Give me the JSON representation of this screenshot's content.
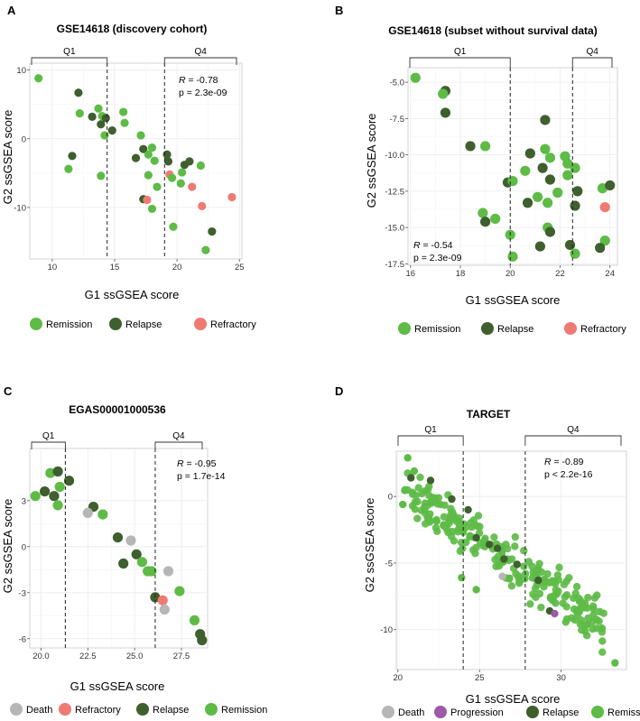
{
  "colors": {
    "Remission": "#5dbb46",
    "Relapse": "#3f5f2e",
    "Refractory": "#ef7a72",
    "Death": "#b6b6b6",
    "Progression": "#9c59a8"
  },
  "chart_data": [
    {
      "type": "scatter",
      "panel": "A",
      "title": "GSE14618 (discovery cohort)",
      "xlabel": "G1 ssGSEA score",
      "ylabel": "G2 ssGSEA score",
      "xlim": [
        8.2,
        25.2
      ],
      "ylim": [
        -17.5,
        11
      ],
      "xticks": [
        10,
        15,
        20,
        25
      ],
      "yticks": [
        10,
        0,
        -10
      ],
      "q1_label": "Q1",
      "q4_label": "Q4",
      "q1_cut": 14.4,
      "q4_cut": 19.0,
      "stats": {
        "r": "= -0.78",
        "p": "p = 2.3e-09",
        "r_label": "R",
        "r_italic": true
      },
      "legend": [
        "Remission",
        "Relapse",
        "Refractory"
      ],
      "points": [
        {
          "x": 8.9,
          "y": 8.8,
          "g": "Remission"
        },
        {
          "x": 12.1,
          "y": 6.7,
          "g": "Relapse"
        },
        {
          "x": 13.7,
          "y": 4.4,
          "g": "Remission"
        },
        {
          "x": 15.7,
          "y": 3.9,
          "g": "Remission"
        },
        {
          "x": 12.2,
          "y": 3.7,
          "g": "Remission"
        },
        {
          "x": 13.2,
          "y": 3.2,
          "g": "Relapse"
        },
        {
          "x": 14.0,
          "y": 3.3,
          "g": "Remission"
        },
        {
          "x": 14.3,
          "y": 3.0,
          "g": "Relapse"
        },
        {
          "x": 13.9,
          "y": 2.1,
          "g": "Relapse"
        },
        {
          "x": 15.8,
          "y": 2.3,
          "g": "Remission"
        },
        {
          "x": 14.8,
          "y": 1.2,
          "g": "Relapse"
        },
        {
          "x": 14.2,
          "y": 0.5,
          "g": "Remission"
        },
        {
          "x": 17.1,
          "y": 0.5,
          "g": "Remission"
        },
        {
          "x": 11.6,
          "y": -2.5,
          "g": "Relapse"
        },
        {
          "x": 17.3,
          "y": -1.5,
          "g": "Relapse"
        },
        {
          "x": 18.0,
          "y": -1.3,
          "g": "Remission"
        },
        {
          "x": 17.7,
          "y": -2.3,
          "g": "Remission"
        },
        {
          "x": 16.7,
          "y": -2.8,
          "g": "Relapse"
        },
        {
          "x": 18.2,
          "y": -3.2,
          "g": "Remission"
        },
        {
          "x": 19.2,
          "y": -2.3,
          "g": "Relapse"
        },
        {
          "x": 19.3,
          "y": -3.3,
          "g": "Relapse"
        },
        {
          "x": 20.6,
          "y": -3.8,
          "g": "Relapse"
        },
        {
          "x": 21.0,
          "y": -3.3,
          "g": "Relapse"
        },
        {
          "x": 21.9,
          "y": -3.9,
          "g": "Remission"
        },
        {
          "x": 11.3,
          "y": -4.4,
          "g": "Remission"
        },
        {
          "x": 13.9,
          "y": -5.4,
          "g": "Remission"
        },
        {
          "x": 17.7,
          "y": -5.3,
          "g": "Remission"
        },
        {
          "x": 20.4,
          "y": -4.9,
          "g": "Remission"
        },
        {
          "x": 19.4,
          "y": -5.2,
          "g": "Refractory"
        },
        {
          "x": 19.6,
          "y": -5.7,
          "g": "Remission"
        },
        {
          "x": 18.4,
          "y": -7.0,
          "g": "Remission"
        },
        {
          "x": 20.3,
          "y": -6.5,
          "g": "Remission"
        },
        {
          "x": 21.2,
          "y": -7.0,
          "g": "Refractory"
        },
        {
          "x": 17.3,
          "y": -8.8,
          "g": "Relapse"
        },
        {
          "x": 17.6,
          "y": -8.9,
          "g": "Refractory"
        },
        {
          "x": 18.0,
          "y": -10.2,
          "g": "Remission"
        },
        {
          "x": 19.7,
          "y": -12.8,
          "g": "Remission"
        },
        {
          "x": 22.0,
          "y": -9.8,
          "g": "Refractory"
        },
        {
          "x": 24.4,
          "y": -8.5,
          "g": "Refractory"
        },
        {
          "x": 22.8,
          "y": -13.5,
          "g": "Relapse"
        },
        {
          "x": 22.3,
          "y": -16.2,
          "g": "Remission"
        }
      ]
    },
    {
      "type": "scatter",
      "panel": "B",
      "title": "GSE14618 (subset without survival data)",
      "xlabel": "G1 ssGSEA score",
      "ylabel": "G2 ssGSEA score",
      "xlim": [
        15.9,
        24.3
      ],
      "ylim": [
        -17.6,
        -4.0
      ],
      "xticks": [
        16,
        18,
        20,
        22,
        24
      ],
      "yticks": [
        -5.0,
        -7.5,
        -10.0,
        -12.5,
        -15.0,
        -17.5
      ],
      "q1_label": "Q1",
      "q4_label": "Q4",
      "q1_cut": 20.0,
      "q4_cut": 22.5,
      "stats": {
        "r": "= -0.54",
        "p": "p = 2.3e-09",
        "r_label": "R",
        "r_italic": true
      },
      "legend": [
        "Remission",
        "Relapse",
        "Refractory"
      ],
      "points": [
        {
          "x": 16.2,
          "y": -4.7,
          "g": "Remission"
        },
        {
          "x": 17.4,
          "y": -5.6,
          "g": "Relapse"
        },
        {
          "x": 17.3,
          "y": -5.8,
          "g": "Remission"
        },
        {
          "x": 17.4,
          "y": -7.1,
          "g": "Relapse"
        },
        {
          "x": 21.4,
          "y": -7.6,
          "g": "Relapse"
        },
        {
          "x": 18.4,
          "y": -9.4,
          "g": "Relapse"
        },
        {
          "x": 19.0,
          "y": -9.4,
          "g": "Remission"
        },
        {
          "x": 21.4,
          "y": -9.6,
          "g": "Remission"
        },
        {
          "x": 20.8,
          "y": -9.9,
          "g": "Relapse"
        },
        {
          "x": 21.6,
          "y": -10.2,
          "g": "Remission"
        },
        {
          "x": 22.2,
          "y": -10.1,
          "g": "Remission"
        },
        {
          "x": 22.3,
          "y": -10.6,
          "g": "Remission"
        },
        {
          "x": 21.3,
          "y": -10.9,
          "g": "Relapse"
        },
        {
          "x": 22.6,
          "y": -10.9,
          "g": "Remission"
        },
        {
          "x": 20.6,
          "y": -11.1,
          "g": "Remission"
        },
        {
          "x": 19.9,
          "y": -11.9,
          "g": "Relapse"
        },
        {
          "x": 20.1,
          "y": -11.8,
          "g": "Remission"
        },
        {
          "x": 21.6,
          "y": -11.7,
          "g": "Relapse"
        },
        {
          "x": 22.3,
          "y": -11.4,
          "g": "Remission"
        },
        {
          "x": 22.7,
          "y": -12.5,
          "g": "Relapse"
        },
        {
          "x": 23.7,
          "y": -12.3,
          "g": "Remission"
        },
        {
          "x": 24.0,
          "y": -12.1,
          "g": "Relapse"
        },
        {
          "x": 21.9,
          "y": -12.6,
          "g": "Remission"
        },
        {
          "x": 21.1,
          "y": -12.9,
          "g": "Remission"
        },
        {
          "x": 21.5,
          "y": -13.3,
          "g": "Remission"
        },
        {
          "x": 20.7,
          "y": -13.3,
          "g": "Relapse"
        },
        {
          "x": 22.6,
          "y": -13.5,
          "g": "Relapse"
        },
        {
          "x": 23.8,
          "y": -13.6,
          "g": "Refractory"
        },
        {
          "x": 18.9,
          "y": -14.0,
          "g": "Remission"
        },
        {
          "x": 19.4,
          "y": -14.4,
          "g": "Remission"
        },
        {
          "x": 19.0,
          "y": -14.6,
          "g": "Relapse"
        },
        {
          "x": 21.5,
          "y": -15.0,
          "g": "Remission"
        },
        {
          "x": 21.6,
          "y": -15.3,
          "g": "Relapse"
        },
        {
          "x": 20.0,
          "y": -15.5,
          "g": "Remission"
        },
        {
          "x": 23.8,
          "y": -15.9,
          "g": "Remission"
        },
        {
          "x": 21.2,
          "y": -16.3,
          "g": "Relapse"
        },
        {
          "x": 22.4,
          "y": -16.2,
          "g": "Relapse"
        },
        {
          "x": 23.6,
          "y": -16.4,
          "g": "Relapse"
        },
        {
          "x": 22.6,
          "y": -16.8,
          "g": "Remission"
        },
        {
          "x": 20.1,
          "y": -17.0,
          "g": "Remission"
        }
      ]
    },
    {
      "type": "scatter",
      "panel": "C",
      "title": "EGAS00001000536",
      "xlabel": "G1 ssGSEA score",
      "ylabel": "G2 ssGSEA score",
      "xlim": [
        19.4,
        28.9
      ],
      "ylim": [
        -6.6,
        6.4
      ],
      "xticks": [
        20.0,
        22.5,
        25.0,
        27.5
      ],
      "yticks": [
        3,
        0,
        -3,
        -6
      ],
      "xtick_labels": [
        "20.0",
        "22.5",
        "25.0",
        "27.5"
      ],
      "q1_label": "Q1",
      "q4_label": "Q4",
      "q1_cut": 21.3,
      "q4_cut": 26.1,
      "stats": {
        "r": "= -0.95",
        "p": "p = 1.7e-14",
        "r_label": "R",
        "r_italic": true
      },
      "legend": [
        "Death",
        "Refractory",
        "Relapse",
        "Remission"
      ],
      "points": [
        {
          "x": 20.5,
          "y": 4.8,
          "g": "Remission"
        },
        {
          "x": 20.9,
          "y": 4.9,
          "g": "Relapse"
        },
        {
          "x": 21.5,
          "y": 4.3,
          "g": "Relapse"
        },
        {
          "x": 21.0,
          "y": 3.9,
          "g": "Remission"
        },
        {
          "x": 20.2,
          "y": 3.6,
          "g": "Relapse"
        },
        {
          "x": 19.7,
          "y": 3.3,
          "g": "Remission"
        },
        {
          "x": 20.7,
          "y": 3.3,
          "g": "Relapse"
        },
        {
          "x": 20.9,
          "y": 2.7,
          "g": "Remission"
        },
        {
          "x": 22.8,
          "y": 2.6,
          "g": "Relapse"
        },
        {
          "x": 22.5,
          "y": 2.2,
          "g": "Death"
        },
        {
          "x": 23.3,
          "y": 2.1,
          "g": "Remission"
        },
        {
          "x": 24.1,
          "y": 0.6,
          "g": "Relapse"
        },
        {
          "x": 24.8,
          "y": 0.4,
          "g": "Death"
        },
        {
          "x": 25.1,
          "y": -0.5,
          "g": "Relapse"
        },
        {
          "x": 24.4,
          "y": -1.1,
          "g": "Relapse"
        },
        {
          "x": 25.4,
          "y": -1.0,
          "g": "Remission"
        },
        {
          "x": 25.7,
          "y": -1.6,
          "g": "Remission"
        },
        {
          "x": 25.9,
          "y": -1.6,
          "g": "Remission"
        },
        {
          "x": 26.8,
          "y": -1.6,
          "g": "Death"
        },
        {
          "x": 27.4,
          "y": -2.9,
          "g": "Remission"
        },
        {
          "x": 26.1,
          "y": -3.3,
          "g": "Relapse"
        },
        {
          "x": 26.5,
          "y": -3.5,
          "g": "Refractory"
        },
        {
          "x": 26.6,
          "y": -4.1,
          "g": "Death"
        },
        {
          "x": 28.2,
          "y": -4.8,
          "g": "Remission"
        },
        {
          "x": 28.5,
          "y": -5.7,
          "g": "Relapse"
        },
        {
          "x": 28.6,
          "y": -6.1,
          "g": "Relapse"
        }
      ]
    },
    {
      "type": "scatter",
      "panel": "D",
      "title": "TARGET",
      "xlabel": "G1 ssGSEA score",
      "ylabel": "G2 ssGSEA score",
      "xlim": [
        19.9,
        34.0
      ],
      "ylim": [
        -13.0,
        3.4
      ],
      "xticks": [
        20,
        25,
        30
      ],
      "yticks": [
        0,
        -5,
        -10
      ],
      "q1_label": "Q1",
      "q4_label": "Q4",
      "q1_cut": 24.0,
      "q4_cut": 27.8,
      "stats": {
        "r": "= -0.89",
        "p": "p < 2.2e-16",
        "r_label": "R",
        "r_italic": true
      },
      "legend": [
        "Death",
        "Progression",
        "Relapse",
        "Remission"
      ],
      "trend": {
        "slope": -0.84,
        "intercept": 17.8,
        "x_from": 20.6,
        "x_to": 32.5,
        "n": 230,
        "spread": 1.1,
        "seed": 7
      },
      "points": [
        {
          "x": 20.6,
          "y": 2.9,
          "g": "Remission"
        },
        {
          "x": 21.0,
          "y": 1.9,
          "g": "Remission"
        },
        {
          "x": 20.8,
          "y": 1.4,
          "g": "Relapse"
        },
        {
          "x": 22.0,
          "y": 1.2,
          "g": "Relapse"
        },
        {
          "x": 23.3,
          "y": -0.2,
          "g": "Relapse"
        },
        {
          "x": 24.3,
          "y": -1.0,
          "g": "Relapse"
        },
        {
          "x": 24.8,
          "y": -3.1,
          "g": "Relapse"
        },
        {
          "x": 25.6,
          "y": -3.6,
          "g": "Relapse"
        },
        {
          "x": 26.1,
          "y": -3.9,
          "g": "Relapse"
        },
        {
          "x": 26.5,
          "y": -4.7,
          "g": "Relapse"
        },
        {
          "x": 27.3,
          "y": -5.1,
          "g": "Relapse"
        },
        {
          "x": 28.6,
          "y": -6.3,
          "g": "Relapse"
        },
        {
          "x": 29.3,
          "y": -8.6,
          "g": "Relapse"
        },
        {
          "x": 26.4,
          "y": -6.0,
          "g": "Death"
        },
        {
          "x": 29.6,
          "y": -8.8,
          "g": "Progression"
        },
        {
          "x": 33.3,
          "y": -12.5,
          "g": "Remission"
        },
        {
          "x": 32.5,
          "y": -9.9,
          "g": "Remission"
        },
        {
          "x": 31.6,
          "y": -9.6,
          "g": "Remission"
        },
        {
          "x": 23.9,
          "y": -6.1,
          "g": "Remission"
        },
        {
          "x": 24.8,
          "y": -7.0,
          "g": "Remission"
        },
        {
          "x": 20.3,
          "y": -0.6,
          "g": "Remission"
        }
      ]
    }
  ]
}
